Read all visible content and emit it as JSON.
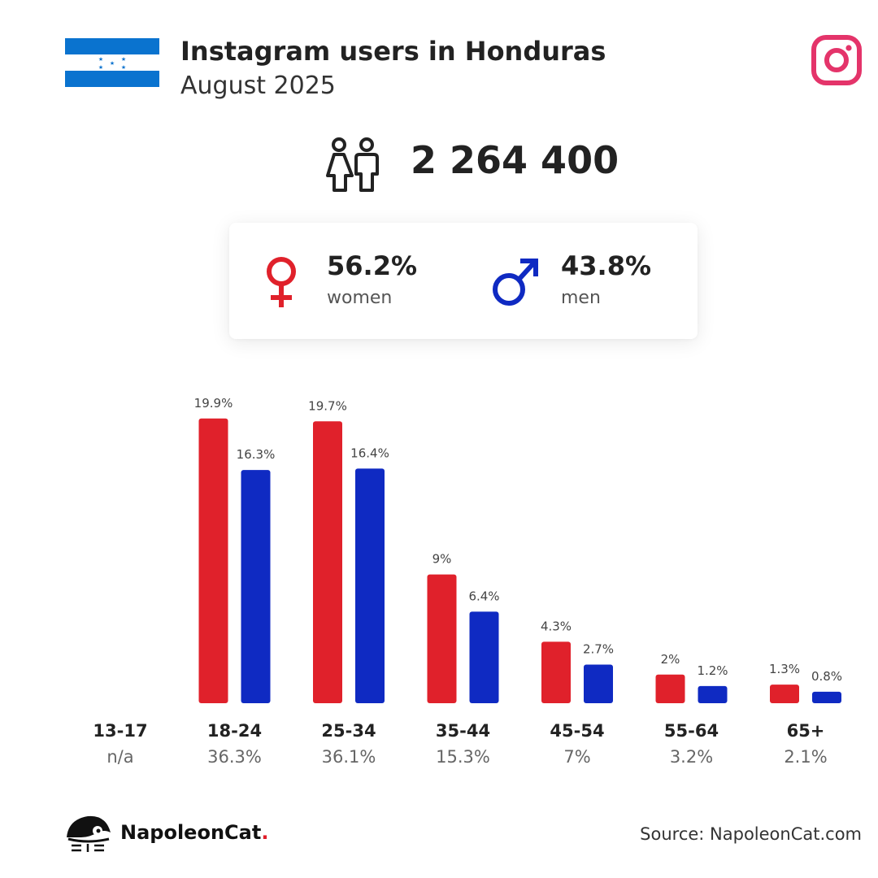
{
  "header": {
    "title": "Instagram users in Honduras",
    "subtitle": "August 2025"
  },
  "summary": {
    "total_users": "2 264 400",
    "women_pct": "56.2%",
    "women_label": "women",
    "men_pct": "43.8%",
    "men_label": "men"
  },
  "colors": {
    "women": "#e0212b",
    "men": "#0f2ac2",
    "flag_blue": "#0a73cf",
    "instagram": "#e4346a"
  },
  "chart_data": {
    "type": "bar",
    "categories": [
      "13-17",
      "18-24",
      "25-34",
      "35-44",
      "45-54",
      "55-64",
      "65+"
    ],
    "category_totals": [
      "n/a",
      "36.3%",
      "36.1%",
      "15.3%",
      "7%",
      "3.2%",
      "2.1%"
    ],
    "series": [
      {
        "name": "women",
        "values": [
          null,
          19.9,
          19.7,
          9,
          4.3,
          2,
          1.3
        ],
        "labels": [
          "",
          "19.9%",
          "19.7%",
          "9%",
          "4.3%",
          "2%",
          "1.3%"
        ]
      },
      {
        "name": "men",
        "values": [
          null,
          16.3,
          16.4,
          6.4,
          2.7,
          1.2,
          0.8
        ],
        "labels": [
          "",
          "16.3%",
          "16.4%",
          "6.4%",
          "2.7%",
          "1.2%",
          "0.8%"
        ]
      }
    ],
    "unit": "%"
  },
  "footer": {
    "brand": "NapoleonCat",
    "brand_dot": ".",
    "source": "Source: NapoleonCat.com"
  }
}
